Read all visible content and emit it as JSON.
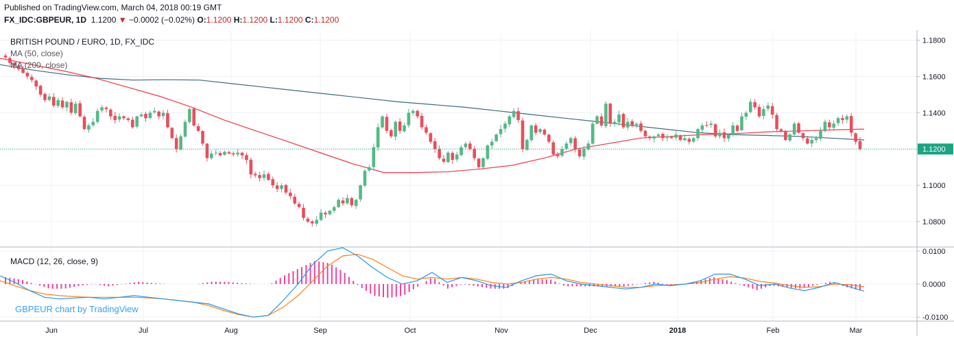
{
  "header": {
    "published": "Published on TradingView.com, March 04, 2018 00:19 GMT",
    "symbol": "FX_IDC:GBPEUR, 1D",
    "last": "1.1200",
    "change": "−0.0002 (−0.02%)",
    "o_label": "O:",
    "o_value": "1.1200",
    "h_label": "H:",
    "h_value": "1.1200",
    "l_label": "L:",
    "l_value": "1.1200",
    "c_label": "C:",
    "c_value": "1.1200"
  },
  "legend": {
    "title": "BRITISH POUND / EURO, 1D, FX_IDC",
    "ma50": "MA (50, close)",
    "ma200": "MA (200, close)",
    "macd": "MACD (12, 26, close, 9)",
    "watermark": "GBPEUR chart by TradingView"
  },
  "colors": {
    "up": "#53b987",
    "down": "#eb4d5c",
    "ma50": "#f23645",
    "ma200": "#3d6a7a",
    "macd": "#2196f3",
    "signal": "#ff7f0e",
    "hist": "#e91e8c",
    "grid": "#eef0f4",
    "price_tag": "#1aa582"
  },
  "chart_data": [
    {
      "type": "candlestick",
      "title": "BRITISH POUND / EURO, 1D, FX_IDC",
      "x_ticks": [
        "Jun",
        "Jul",
        "Aug",
        "Sep",
        "Oct",
        "Nov",
        "Dec",
        "2018",
        "Feb",
        "Mar"
      ],
      "y_ticks": [
        "1.1800",
        "1.1600",
        "1.1400",
        "1.1200",
        "1.1000",
        "1.0800"
      ],
      "ylim": [
        1.066,
        1.1855
      ],
      "last_price": 1.12,
      "last_price_label": "1.1200",
      "close_series": [
        1.1705,
        1.1675,
        1.166,
        1.164,
        1.162,
        1.16,
        1.158,
        1.1545,
        1.15,
        1.147,
        1.149,
        1.144,
        1.147,
        1.143,
        1.146,
        1.14,
        1.145,
        1.138,
        1.131,
        1.133,
        1.135,
        1.141,
        1.143,
        1.142,
        1.138,
        1.136,
        1.138,
        1.137,
        1.136,
        1.132,
        1.138,
        1.139,
        1.137,
        1.14,
        1.141,
        1.138,
        1.14,
        1.132,
        1.126,
        1.12,
        1.127,
        1.135,
        1.142,
        1.133,
        1.13,
        1.123,
        1.115,
        1.1175,
        1.118,
        1.1165,
        1.1185,
        1.1175,
        1.117,
        1.118,
        1.1165,
        1.114,
        1.106,
        1.1055,
        1.104,
        1.106,
        1.103,
        1.1,
        1.098,
        1.1,
        1.096,
        1.094,
        1.09,
        1.088,
        1.082,
        1.08,
        1.079,
        1.081,
        1.085,
        1.084,
        1.086,
        1.088,
        1.092,
        1.09,
        1.093,
        1.089,
        1.092,
        1.1,
        1.108,
        1.11,
        1.121,
        1.132,
        1.138,
        1.13,
        1.127,
        1.135,
        1.13,
        1.133,
        1.14,
        1.141,
        1.138,
        1.132,
        1.129,
        1.124,
        1.12,
        1.115,
        1.113,
        1.118,
        1.114,
        1.117,
        1.121,
        1.123,
        1.12,
        1.115,
        1.11,
        1.115,
        1.122,
        1.124,
        1.128,
        1.131,
        1.134,
        1.138,
        1.141,
        1.136,
        1.12,
        1.125,
        1.133,
        1.129,
        1.131,
        1.128,
        1.124,
        1.117,
        1.116,
        1.12,
        1.123,
        1.126,
        1.12,
        1.116,
        1.12,
        1.123,
        1.134,
        1.138,
        1.133,
        1.145,
        1.134,
        1.135,
        1.139,
        1.132,
        1.135,
        1.133,
        1.134,
        1.13,
        1.127,
        1.126,
        1.127,
        1.128,
        1.126,
        1.127,
        1.126,
        1.128,
        1.125,
        1.126,
        1.124,
        1.126,
        1.131,
        1.133,
        1.133,
        1.134,
        1.127,
        1.129,
        1.126,
        1.128,
        1.133,
        1.13,
        1.138,
        1.14,
        1.146,
        1.143,
        1.138,
        1.142,
        1.144,
        1.139,
        1.131,
        1.13,
        1.125,
        1.128,
        1.134,
        1.129,
        1.126,
        1.123,
        1.125,
        1.126,
        1.13,
        1.135,
        1.132,
        1.134,
        1.137,
        1.136,
        1.138,
        1.129,
        1.124,
        1.12
      ],
      "ma50": [
        1.17,
        1.1665,
        1.163,
        1.159,
        1.154,
        1.149,
        1.143,
        1.136,
        1.13,
        1.124,
        1.118,
        1.112,
        1.107,
        1.107,
        1.1075,
        1.109,
        1.111,
        1.115,
        1.12,
        1.123,
        1.126,
        1.127,
        1.128,
        1.1285,
        1.1295,
        1.13,
        1.1305,
        1.131
      ],
      "ma200": [
        1.1665,
        1.1635,
        1.161,
        1.159,
        1.158,
        1.1582,
        1.158,
        1.156,
        1.154,
        1.152,
        1.15,
        1.148,
        1.146,
        1.1445,
        1.143,
        1.141,
        1.139,
        1.137,
        1.135,
        1.133,
        1.131,
        1.129,
        1.128,
        1.1275,
        1.127,
        1.126,
        1.125
      ],
      "series": [
        {
          "name": "MA (50, close)"
        },
        {
          "name": "MA (200, close)"
        }
      ]
    },
    {
      "type": "line",
      "title": "MACD (12, 26, close, 9)",
      "y_ticks": [
        "0.0100",
        "0.0000",
        "-0.0100"
      ],
      "ylim": [
        -0.0112,
        0.0112
      ],
      "macd": [
        0.0025,
        0.0005,
        -0.002,
        -0.004,
        -0.0045,
        -0.0042,
        -0.004,
        -0.0045,
        -0.004,
        -0.0035,
        -0.004,
        -0.0045,
        -0.005,
        -0.0055,
        -0.006,
        -0.0075,
        -0.009,
        -0.01,
        -0.0095,
        -0.005,
        0.0,
        0.006,
        0.01,
        0.011,
        0.0085,
        0.005,
        0.002,
        0.0,
        0.001,
        0.0035,
        0.0005,
        0.002,
        0.001,
        -0.0005,
        -0.001,
        0.001,
        0.0025,
        0.003,
        0.001,
        0.0,
        -0.0005,
        -0.001,
        -0.0015,
        -0.001,
        0.0,
        -0.0005,
        0.0,
        0.001,
        0.003,
        0.003,
        0.0015,
        -0.0005,
        0.0,
        -0.0012,
        -0.002,
        -0.001,
        0.0005,
        -0.0008,
        -0.0022
      ],
      "signal": [
        0.001,
        -0.0005,
        -0.002,
        -0.003,
        -0.0035,
        -0.0038,
        -0.004,
        -0.004,
        -0.004,
        -0.004,
        -0.0042,
        -0.0045,
        -0.005,
        -0.0055,
        -0.0065,
        -0.008,
        -0.0092,
        -0.01,
        -0.0095,
        -0.007,
        -0.0035,
        0.001,
        0.0055,
        0.0085,
        0.009,
        0.0075,
        0.005,
        0.0025,
        0.0015,
        0.002,
        0.0015,
        0.002,
        0.0015,
        0.0005,
        0.0,
        0.0005,
        0.0015,
        0.002,
        0.0015,
        0.0005,
        0.0,
        -0.0005,
        -0.001,
        -0.001,
        -0.0005,
        -0.0003,
        0.0,
        0.0005,
        0.0015,
        0.0022,
        0.0018,
        0.0008,
        0.0003,
        -0.0005,
        -0.001,
        -0.0008,
        0.0,
        -0.0002,
        -0.0008
      ],
      "series": [
        {
          "name": "MACD"
        },
        {
          "name": "Signal"
        },
        {
          "name": "Histogram"
        }
      ]
    }
  ]
}
